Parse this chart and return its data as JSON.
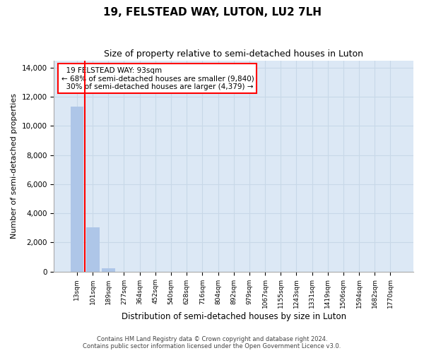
{
  "title": "19, FELSTEAD WAY, LUTON, LU2 7LH",
  "subtitle": "Size of property relative to semi-detached houses in Luton",
  "xlabel": "Distribution of semi-detached houses by size in Luton",
  "ylabel": "Number of semi-detached properties",
  "categories": [
    "13sqm",
    "101sqm",
    "189sqm",
    "277sqm",
    "364sqm",
    "452sqm",
    "540sqm",
    "628sqm",
    "716sqm",
    "804sqm",
    "892sqm",
    "979sqm",
    "1067sqm",
    "1155sqm",
    "1243sqm",
    "1331sqm",
    "1419sqm",
    "1506sqm",
    "1594sqm",
    "1682sqm",
    "1770sqm"
  ],
  "values": [
    11350,
    3030,
    220,
    0,
    0,
    0,
    0,
    0,
    0,
    0,
    0,
    0,
    0,
    0,
    0,
    0,
    0,
    0,
    0,
    0,
    0
  ],
  "bar_color": "#aec6e8",
  "property_label": "19 FELSTEAD WAY: 93sqm",
  "pct_smaller": 68,
  "n_smaller": 9840,
  "pct_larger": 30,
  "n_larger": 4379,
  "vline_x": 1,
  "ylim": [
    0,
    14500
  ],
  "yticks": [
    0,
    2000,
    4000,
    6000,
    8000,
    10000,
    12000,
    14000
  ],
  "grid_color": "#c8d8e8",
  "background_color": "#dce8f5",
  "footer_line1": "Contains HM Land Registry data © Crown copyright and database right 2024.",
  "footer_line2": "Contains public sector information licensed under the Open Government Licence v3.0."
}
